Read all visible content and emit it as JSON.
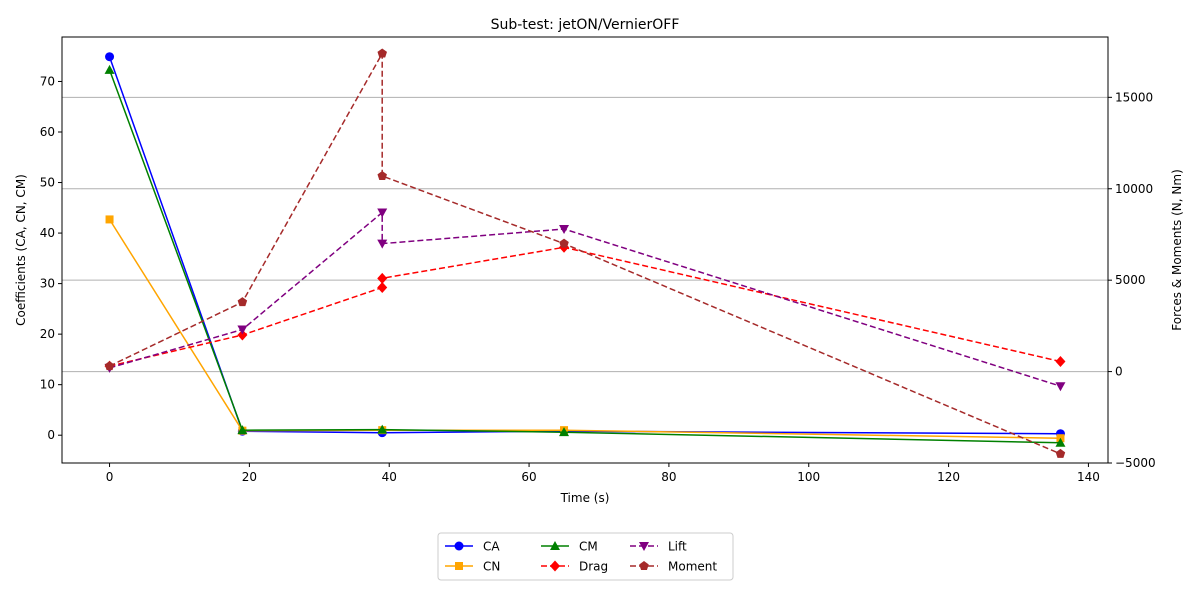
{
  "chart_data": {
    "type": "line",
    "title": "Sub-test: jetON/VernierOFF",
    "xlabel": "Time (s)",
    "ylabel_left": "Coefficients (CA, CN, CM)",
    "ylabel_right": "Forces & Moments (N, Nm)",
    "xlim": [
      -6.8,
      142.8
    ],
    "ylim_left": [
      -5.5,
      78.8
    ],
    "ylim_right": [
      -5000,
      18300
    ],
    "x_ticks": [
      0,
      20,
      40,
      60,
      80,
      100,
      120,
      140
    ],
    "y_ticks_left": [
      0,
      10,
      20,
      30,
      40,
      50,
      60,
      70
    ],
    "y_ticks_right": [
      -5000,
      0,
      5000,
      10000,
      15000
    ],
    "grid": "horizontal-right-axis",
    "legend_position": "below-center",
    "series": [
      {
        "name": "CA",
        "axis": "left",
        "color": "#0000ff",
        "style": "solid",
        "marker": "circle",
        "x": [
          0,
          19,
          39,
          65,
          136
        ],
        "y": [
          74.9,
          0.8,
          0.5,
          0.8,
          0.3
        ]
      },
      {
        "name": "CN",
        "axis": "left",
        "color": "#ffa500",
        "style": "solid",
        "marker": "square",
        "x": [
          0,
          19,
          39,
          65,
          136
        ],
        "y": [
          42.7,
          0.9,
          1.0,
          1.0,
          -0.6
        ]
      },
      {
        "name": "CM",
        "axis": "left",
        "color": "#008000",
        "style": "solid",
        "marker": "triangle-up",
        "x": [
          0,
          19,
          39,
          65,
          136
        ],
        "y": [
          72.3,
          1.0,
          1.1,
          0.6,
          -1.5
        ]
      },
      {
        "name": "Drag",
        "axis": "right",
        "color": "#ff0000",
        "style": "dashed",
        "marker": "diamond",
        "x": [
          0,
          19,
          39,
          39,
          65,
          136
        ],
        "y": [
          300,
          2000,
          4600,
          5100,
          6800,
          550
        ]
      },
      {
        "name": "Lift",
        "axis": "right",
        "color": "#800080",
        "style": "dashed",
        "marker": "triangle-down",
        "x": [
          0,
          19,
          39,
          39,
          65,
          136
        ],
        "y": [
          200,
          2300,
          8700,
          7000,
          7800,
          -800
        ]
      },
      {
        "name": "Moment",
        "axis": "right",
        "color": "#a52a2a",
        "style": "dashed",
        "marker": "pentagon",
        "x": [
          0,
          19,
          39,
          39,
          65,
          136
        ],
        "y": [
          300,
          3800,
          17400,
          10700,
          7000,
          -4500
        ]
      }
    ]
  }
}
